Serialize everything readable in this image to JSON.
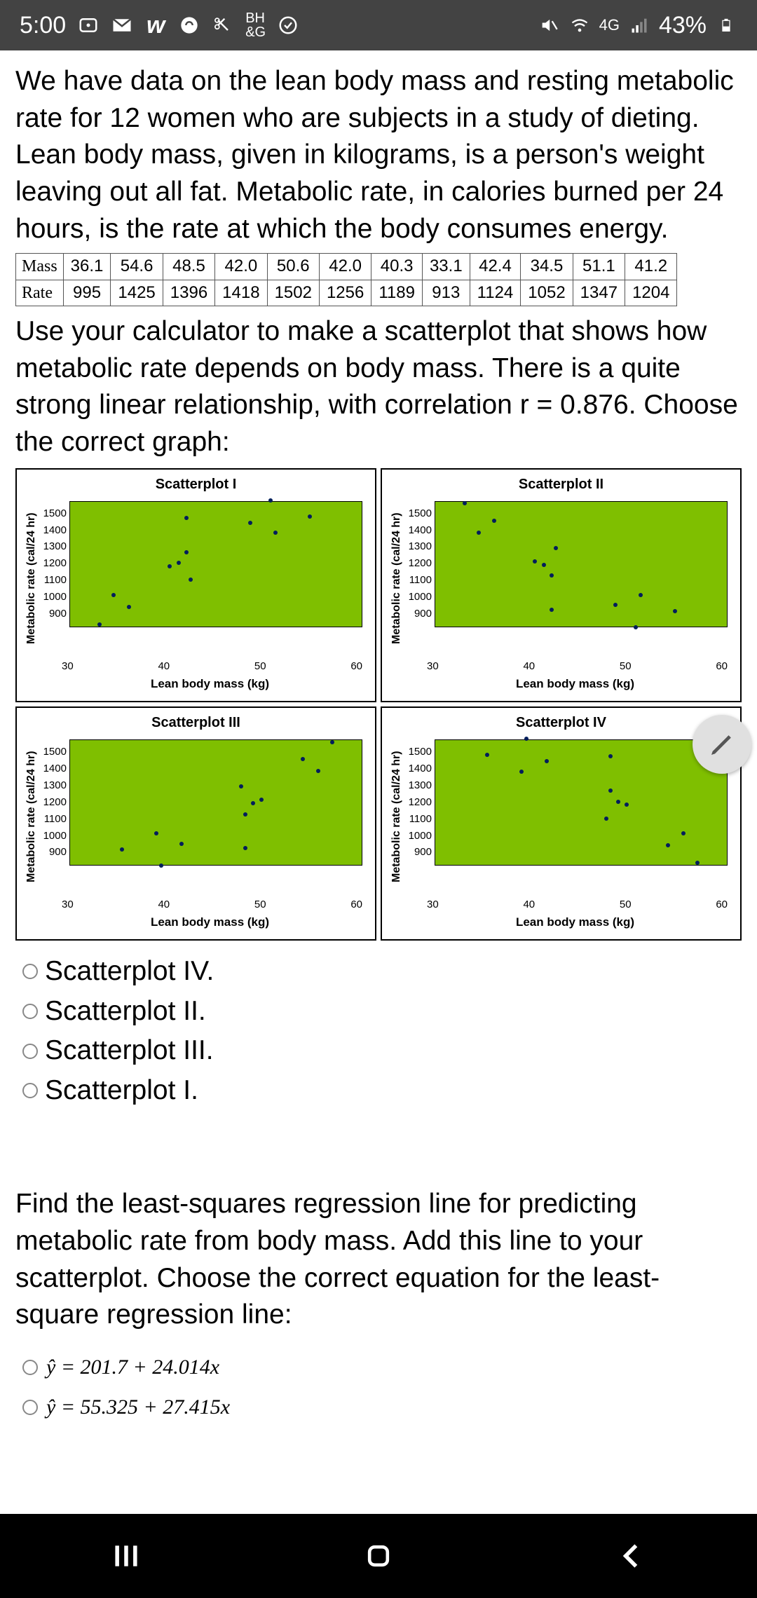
{
  "status": {
    "time": "5:00",
    "network": "4G",
    "battery": "43%"
  },
  "intro": "We have data on the lean body mass and resting metabolic rate for 12 women who are subjects in a study of dieting. Lean body mass, given in kilograms, is a person's weight leaving out all fat. Metabolic rate, in calories burned per 24 hours, is the rate at which the body consumes energy.",
  "table": {
    "row1_label": "Mass",
    "row2_label": "Rate",
    "mass": [
      "36.1",
      "54.6",
      "48.5",
      "42.0",
      "50.6",
      "42.0",
      "40.3",
      "33.1",
      "42.4",
      "34.5",
      "51.1",
      "41.2"
    ],
    "rate": [
      "995",
      "1425",
      "1396",
      "1418",
      "1502",
      "1256",
      "1189",
      "913",
      "1124",
      "1052",
      "1347",
      "1204"
    ]
  },
  "instruction": "Use your calculator to make a scatterplot that shows how metabolic rate depends on body mass. There is a quite strong linear relationship, with correlation r = 0.876. Choose the correct graph:",
  "axis": {
    "ylabel": "Metabolic rate (cal/24 hr)",
    "xlabel": "Lean body mass (kg)",
    "yticks": [
      "1500",
      "1400",
      "1300",
      "1200",
      "1100",
      "1000",
      "900"
    ],
    "xticks": [
      "30",
      "40",
      "50",
      "60"
    ],
    "xlim": [
      30,
      60
    ],
    "ylim": [
      900,
      1500
    ],
    "plot_bg": "#7fbf00",
    "point_color": "#001e5b"
  },
  "plots": {
    "p1": {
      "title": "Scatterplot I",
      "mass": [
        36.1,
        54.6,
        48.5,
        42.0,
        50.6,
        42.0,
        40.3,
        33.1,
        42.4,
        34.5,
        51.1,
        41.2
      ],
      "rate": [
        995,
        1425,
        1396,
        1418,
        1502,
        1256,
        1189,
        913,
        1124,
        1052,
        1347,
        1204
      ]
    },
    "p2": {
      "title": "Scatterplot II",
      "mass": [
        36.1,
        54.6,
        48.5,
        42.0,
        50.6,
        42.0,
        40.3,
        33.1,
        42.4,
        34.5,
        51.1,
        41.2
      ],
      "rate": [
        1405,
        975,
        1004,
        982,
        898,
        1144,
        1211,
        1487,
        1276,
        1348,
        1053,
        1196
      ]
    },
    "p3": {
      "title": "Scatterplot III",
      "mass": [
        53.9,
        35.4,
        41.5,
        48.0,
        39.4,
        48.0,
        49.7,
        56.9,
        47.6,
        55.5,
        38.9,
        48.8
      ],
      "rate": [
        1405,
        975,
        1004,
        982,
        898,
        1144,
        1211,
        1487,
        1276,
        1348,
        1053,
        1196
      ]
    },
    "p4": {
      "title": "Scatterplot IV",
      "mass": [
        53.9,
        35.4,
        41.5,
        48.0,
        39.4,
        48.0,
        49.7,
        56.9,
        47.6,
        55.5,
        38.9,
        48.8
      ],
      "rate": [
        995,
        1425,
        1396,
        1418,
        1502,
        1256,
        1189,
        913,
        1124,
        1052,
        1347,
        1204
      ]
    }
  },
  "options": {
    "o1": "Scatterplot IV.",
    "o2": "Scatterplot II.",
    "o3": "Scatterplot III.",
    "o4": "Scatterplot I."
  },
  "q2": "Find the least-squares regression line for predicting metabolic rate from body mass. Add this line to your scatterplot. Choose the correct equation for the least-square regression line:",
  "eq": {
    "e1": "ŷ = 201.7 + 24.014x",
    "e2": "ŷ = 55.325 + 27.415x"
  }
}
